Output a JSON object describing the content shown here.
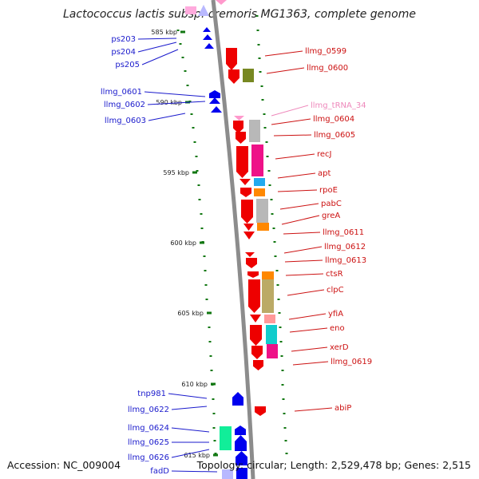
{
  "title": "Lactococcus lactis subsp. cremoris MG1363, complete genome",
  "footer": {
    "accession": "Accession: NC_009004",
    "summary": "Topology: circular; Length: 2,529,478 bp; Genes: 2,515"
  },
  "colors": {
    "backbone": "#8c8c8c",
    "forward_strand": "#ee0000",
    "reverse_strand": "#0000ee",
    "left_label": "#1a1acc",
    "right_label": "#cc1111",
    "trna_label": "#ee88bb",
    "tick": "#117711"
  },
  "ticks": [
    {
      "label": "585 kbp"
    },
    {
      "label": "590 kbp"
    },
    {
      "label": "595 kbp"
    },
    {
      "label": "600 kbp"
    },
    {
      "label": "605 kbp"
    },
    {
      "label": "610 kbp"
    },
    {
      "label": "615 kbp"
    }
  ],
  "left_genes": [
    "ps203",
    "ps204",
    "ps205",
    "llmg_0601",
    "llmg_0602",
    "llmg_0603",
    "tnp981",
    "llmg_0622",
    "llmg_0624",
    "llmg_0625",
    "llmg_0626",
    "fadD"
  ],
  "right_genes": [
    "llmg_0599",
    "llmg_0600",
    "llmg_tRNA_34",
    "llmg_0604",
    "llmg_0605",
    "recJ",
    "apt",
    "rpoE",
    "pabC",
    "greA",
    "llmg_0611",
    "llmg_0612",
    "llmg_0613",
    "ctsR",
    "clpC",
    "yfiA",
    "eno",
    "xerD",
    "llmg_0619",
    "abiP"
  ]
}
